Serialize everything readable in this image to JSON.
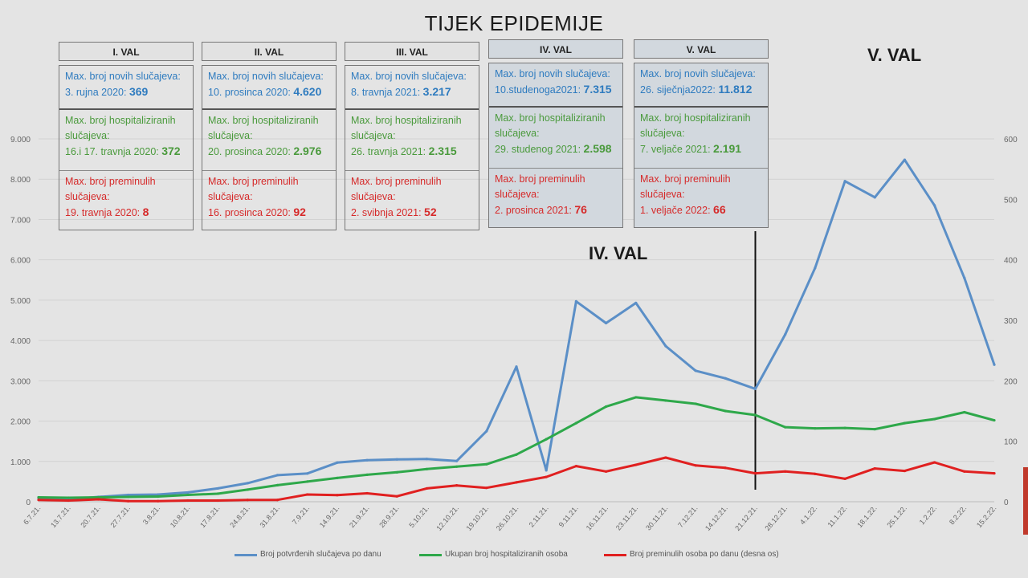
{
  "title": "TIJEK EPIDEMIJE",
  "wave_labels": {
    "iv": "IV. VAL",
    "v": "V. VAL"
  },
  "waves": [
    {
      "header": "I. VAL",
      "shaded": false,
      "cases_label": "Max. broj novih slučajeva:",
      "cases_date": "3. rujna 2020:",
      "cases_value": "369",
      "hosp_label": "Max. broj hospitaliziranih slučajeva:",
      "hosp_date": "16.i 17. travnja 2020:",
      "hosp_value": "372",
      "deaths_label": "Max. broj preminulih slučajeva:",
      "deaths_date": "19. travnja 2020:",
      "deaths_value": "8"
    },
    {
      "header": "II. VAL",
      "shaded": false,
      "cases_label": "Max. broj novih slučajeva:",
      "cases_date": "10. prosinca 2020:",
      "cases_value": "4.620",
      "hosp_label": "Max. broj hospitaliziranih slučajeva:",
      "hosp_date": "20. prosinca 2020:",
      "hosp_value": "2.976",
      "deaths_label": "Max. broj preminulih slučajeva:",
      "deaths_date": "16. prosinca 2020:",
      "deaths_value": "92"
    },
    {
      "header": "III. VAL",
      "shaded": false,
      "cases_label": "Max. broj novih slučajeva:",
      "cases_date": "8. travnja 2021:",
      "cases_value": "3.217",
      "hosp_label": "Max. broj hospitaliziranih slučajeva:",
      "hosp_date": "26. travnja 2021:",
      "hosp_value": "2.315",
      "deaths_label": "Max. broj preminulih slučajeva:",
      "deaths_date": "2. svibnja 2021:",
      "deaths_value": "52"
    },
    {
      "header": "IV. VAL",
      "shaded": true,
      "cases_label": "Max. broj novih slučajeva:",
      "cases_date": "10.studenoga2021:",
      "cases_value": "7.315",
      "hosp_label": "Max. broj hospitaliziranih slučajeva:",
      "hosp_date": "29. studenog 2021:",
      "hosp_value": "2.598",
      "deaths_label": "Max. broj preminulih slučajeva:",
      "deaths_date": "2. prosinca 2021:",
      "deaths_value": "76"
    },
    {
      "header": "V. VAL",
      "shaded": true,
      "cases_label": "Max. broj novih slučajeva:",
      "cases_date": "26. siječnja2022:",
      "cases_value": "11.812",
      "hosp_label": "Max. broj hospitaliziranih slučajeva:",
      "hosp_date": "7. veljače 2021:",
      "hosp_value": "2.191",
      "deaths_label": "Max. broj preminulih slučajeva:",
      "deaths_date": "1. veljače 2022:",
      "deaths_value": "66"
    }
  ],
  "chart_data": {
    "type": "line",
    "x": [
      "6.7.21.",
      "13.7.21.",
      "20.7.21.",
      "27.7.21.",
      "3.8.21.",
      "10.8.21.",
      "17.8.21.",
      "24.8.21.",
      "31.8.21.",
      "7.9.21.",
      "14.9.21.",
      "21.9.21.",
      "28.9.21.",
      "5.10.21.",
      "12.10.21.",
      "19.10.21.",
      "26.10.21.",
      "2.11.21.",
      "9.11.21.",
      "16.11.21.",
      "23.11.21.",
      "30.11.21.",
      "7.12.21.",
      "14.12.21.",
      "21.12.21.",
      "28.12.21.",
      "4.1.22.",
      "11.1.22.",
      "18.1.22.",
      "25.1.22.",
      "1.2.22.",
      "8.2.22.",
      "15.2.22."
    ],
    "y_left_ticks": [
      "0",
      "1.000",
      "2.000",
      "3.000",
      "4.000",
      "5.000",
      "6.000",
      "7.000",
      "8.000",
      "9.000"
    ],
    "y_right_ticks": [
      "0",
      "100",
      "200",
      "300",
      "400",
      "500",
      "600"
    ],
    "ylim_left": [
      0,
      9000
    ],
    "ylim_right": [
      0,
      600
    ],
    "series": [
      {
        "name": "Broj potvrđenih slučajeva po danu",
        "axis": "left",
        "color": "#5b8fc7",
        "values": [
          90,
          60,
          120,
          170,
          180,
          230,
          330,
          460,
          660,
          700,
          970,
          1030,
          1050,
          1060,
          1010,
          1750,
          3350,
          780,
          4970,
          4430,
          4930,
          3860,
          3250,
          3060,
          2800,
          4150,
          5800,
          7950,
          7550,
          8480,
          7350,
          5550,
          3400
        ]
      },
      {
        "name": "Ukupan broj hospitaliziranih osoba",
        "axis": "left",
        "color": "#2ea84a",
        "values": [
          110,
          100,
          110,
          120,
          130,
          170,
          200,
          300,
          410,
          500,
          590,
          670,
          730,
          810,
          870,
          930,
          1170,
          1550,
          1950,
          2360,
          2590,
          2510,
          2430,
          2250,
          2150,
          1850,
          1820,
          1830,
          1800,
          1950,
          2050,
          2220,
          2020
        ]
      },
      {
        "name": "Broj preminulih osoba po danu (desna os)",
        "axis": "right",
        "color": "#e02020",
        "values": [
          3,
          2,
          4,
          1,
          1,
          2,
          2,
          3,
          3,
          12,
          11,
          14,
          9,
          22,
          27,
          23,
          32,
          41,
          59,
          50,
          61,
          73,
          60,
          56,
          47,
          50,
          46,
          38,
          55,
          51,
          65,
          50,
          47
        ]
      }
    ],
    "grid": true,
    "legend_position": "bottom",
    "vertical_marker_x": "21.12.21."
  }
}
